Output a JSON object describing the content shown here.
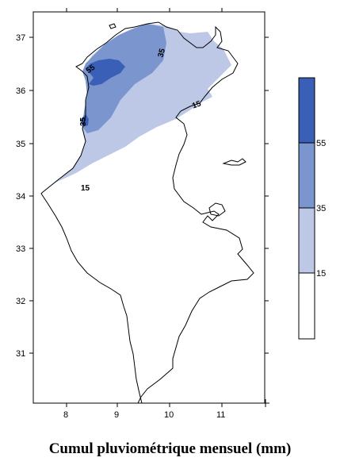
{
  "title": "Cumul pluviométrique mensuel (mm)",
  "axes": {
    "x_ticks": [
      "8",
      "9",
      "10",
      "11"
    ],
    "y_ticks": [
      "37",
      "36",
      "35",
      "34",
      "33",
      "32",
      "31"
    ]
  },
  "contour_labels": [
    "55",
    "35",
    "35",
    "15",
    "15"
  ],
  "legend": {
    "levels": [
      "55",
      "35",
      "15"
    ],
    "colors": [
      "#3a5fb6",
      "#7b96cf",
      "#bcc8e6",
      "#ffffff"
    ]
  },
  "colors": {
    "level_55": "#3a5fb6",
    "level_35": "#7b96cf",
    "level_15": "#bcc8e6",
    "outline": "#000000"
  }
}
